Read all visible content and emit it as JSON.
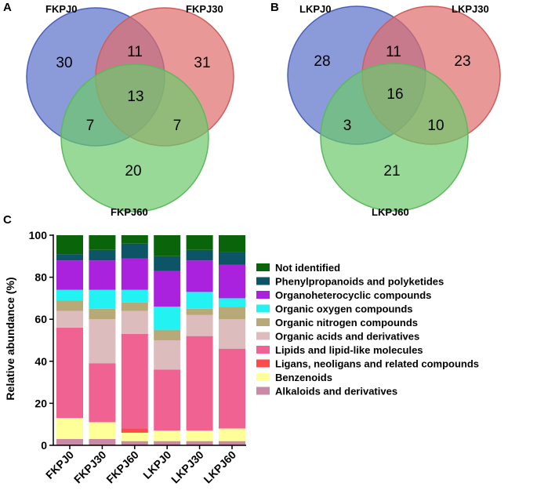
{
  "venn_a": {
    "panel_label": "A",
    "sets": [
      "FKPJ0",
      "FKPJ30",
      "FKPJ60"
    ],
    "counts": {
      "only_1": "30",
      "only_2": "31",
      "only_3": "20",
      "1_2": "11",
      "1_3": "7",
      "2_3": "7",
      "all": "13"
    }
  },
  "venn_b": {
    "panel_label": "B",
    "sets": [
      "LKPJ0",
      "LKPJ30",
      "LKPJ60"
    ],
    "counts": {
      "only_1": "28",
      "only_2": "23",
      "only_3": "21",
      "1_2": "11",
      "1_3": "3",
      "2_3": "10",
      "all": "16"
    }
  },
  "venn_colors": [
    "#5a6fc8",
    "#e06c6c",
    "#6cc96c"
  ],
  "panel_c_label": "C",
  "chart_data": {
    "type": "bar",
    "stacked": true,
    "title": "",
    "xlabel": "",
    "ylabel": "Relative abundance (%)",
    "ylim": [
      0,
      100
    ],
    "yticks": [
      0,
      20,
      40,
      60,
      80,
      100
    ],
    "grid": false,
    "legend_position": "right",
    "categories": [
      "FKPJ0",
      "FKPJ30",
      "FKPJ60",
      "LKPJ0",
      "LKPJ30",
      "LKPJ60"
    ],
    "series": [
      {
        "name": "Alkaloids and derivatives",
        "color": "#c98aa8",
        "values": [
          3,
          3,
          2,
          2,
          2,
          2
        ]
      },
      {
        "name": "Benzenoids",
        "color": "#ffff99",
        "values": [
          10,
          8,
          4,
          5,
          5,
          6
        ]
      },
      {
        "name": "Ligans, neoligans and related compounds",
        "color": "#ff4a4a",
        "values": [
          0,
          0,
          2,
          0,
          0,
          0
        ]
      },
      {
        "name": "Lipids and lipid-like molecules",
        "color": "#f06292",
        "values": [
          43,
          28,
          45,
          29,
          45,
          38
        ]
      },
      {
        "name": "Organic acids and derivatives",
        "color": "#dcbcbc",
        "values": [
          8,
          21,
          11,
          14,
          10,
          14
        ]
      },
      {
        "name": "Organic nitrogen compounds",
        "color": "#b8aa78",
        "values": [
          5,
          5,
          4,
          5,
          3,
          6
        ]
      },
      {
        "name": "Organic oxygen compounds",
        "color": "#22f2f2",
        "values": [
          5,
          9,
          6,
          11,
          8,
          4
        ]
      },
      {
        "name": "Organoheterocyclic compounds",
        "color": "#aa22dd",
        "values": [
          14,
          14,
          15,
          17,
          15,
          16
        ]
      },
      {
        "name": "Phenylpropanoids and polyketides",
        "color": "#0d5566",
        "values": [
          3,
          5,
          7,
          7,
          5,
          6
        ]
      },
      {
        "name": "Not identified",
        "color": "#0a640a",
        "values": [
          9,
          7,
          4,
          10,
          7,
          8
        ]
      }
    ],
    "legend_order": [
      "Not identified",
      "Phenylpropanoids and polyketides",
      "Organoheterocyclic compounds",
      "Organic oxygen compounds",
      "Organic nitrogen compounds",
      "Organic acids and derivatives",
      "Lipids and lipid-like molecules",
      "Ligans, neoligans and related compounds",
      "Benzenoids",
      "Alkaloids and derivatives"
    ]
  }
}
